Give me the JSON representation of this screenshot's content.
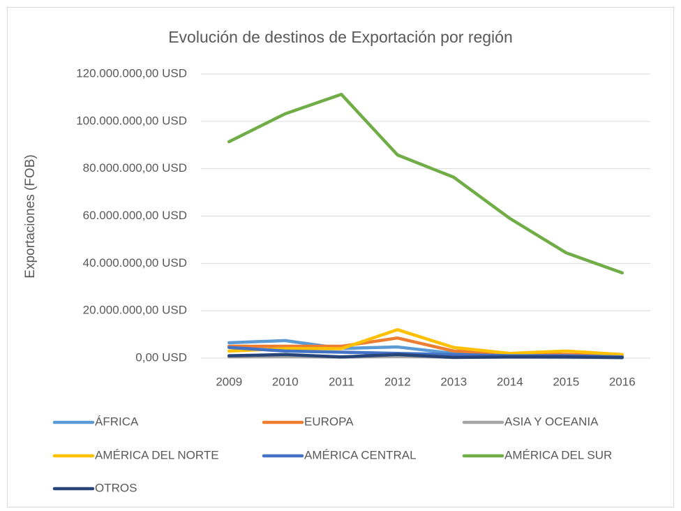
{
  "chart_data": {
    "type": "line",
    "title": "Evolución de destinos de Exportación por región",
    "y_label": "Exportaciones (FOB)",
    "categories": [
      "2009",
      "2010",
      "2011",
      "2012",
      "2013",
      "2014",
      "2015",
      "2016"
    ],
    "series": [
      {
        "name": "ÁFRICA",
        "color": "#5B9BD5",
        "values": [
          6500000,
          7400000,
          4100000,
          4700000,
          2000000,
          1200000,
          900000,
          600000
        ]
      },
      {
        "name": "EUROPA",
        "color": "#ED7D31",
        "values": [
          5000000,
          5000000,
          5000000,
          8500000,
          3000000,
          2000000,
          1500000,
          1000000
        ]
      },
      {
        "name": "ASIA Y OCEANIA",
        "color": "#A5A5A5",
        "values": [
          500000,
          600000,
          400000,
          700000,
          400000,
          400000,
          300000,
          300000
        ]
      },
      {
        "name": "AMÉRICA DEL NORTE",
        "color": "#FFC000",
        "values": [
          3000000,
          4000000,
          4000000,
          12000000,
          4500000,
          2000000,
          3000000,
          1500000
        ]
      },
      {
        "name": "AMÉRICA CENTRAL",
        "color": "#4472C4",
        "values": [
          4500000,
          3000000,
          2500000,
          2000000,
          1500000,
          1000000,
          1000000,
          500000
        ]
      },
      {
        "name": "AMÉRICA DEL SUR",
        "color": "#70AD47",
        "values": [
          91400000,
          103200000,
          111400000,
          85800000,
          76400000,
          59000000,
          44500000,
          36000000
        ]
      },
      {
        "name": "OTROS",
        "color": "#264478",
        "values": [
          1000000,
          1500000,
          500000,
          1500000,
          300000,
          500000,
          500000,
          200000
        ]
      }
    ],
    "ylim": [
      0,
      120000000
    ],
    "yticks": [
      {
        "value": 0,
        "label": "0,00 USD"
      },
      {
        "value": 20000000,
        "label": "20.000.000,00 USD"
      },
      {
        "value": 40000000,
        "label": "40.000.000,00 USD"
      },
      {
        "value": 60000000,
        "label": "60.000.000,00 USD"
      },
      {
        "value": 80000000,
        "label": "80.000.000,00 USD"
      },
      {
        "value": 100000000,
        "label": "100.000.000,00 USD"
      },
      {
        "value": 120000000,
        "label": "120.000.000,00 USD"
      }
    ],
    "grid": true,
    "legend": "bottom"
  }
}
